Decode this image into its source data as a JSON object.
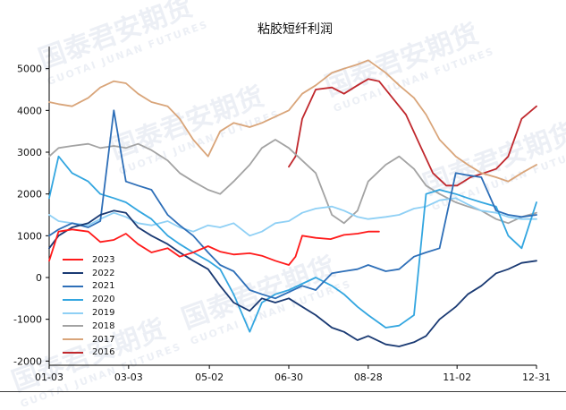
{
  "watermark": {
    "brand": "国泰君安期货",
    "brand_en": "GUOTAI JUNAN FUTURES"
  },
  "chart_data": {
    "type": "line",
    "title": "粘胶短纤利润",
    "xlabel": "",
    "ylabel": "",
    "x_ticks": [
      "01-03",
      "03-03",
      "05-02",
      "06-30",
      "08-28",
      "11-02",
      "12-31"
    ],
    "y_ticks": [
      -2000,
      -1000,
      0,
      1000,
      2000,
      3000,
      4000,
      5000
    ],
    "ylim": [
      -2100,
      5400
    ],
    "grid": false,
    "legend_position": "left-bottom",
    "series": [
      {
        "name": "2023",
        "color": "#ff1a1a",
        "x": [
          "01-03",
          "01-10",
          "01-20",
          "02-01",
          "02-10",
          "02-20",
          "03-01",
          "03-10",
          "03-20",
          "04-01",
          "04-10",
          "04-20",
          "05-01",
          "05-10",
          "05-20",
          "06-01",
          "06-10",
          "06-20",
          "06-30",
          "07-05",
          "07-10",
          "07-20",
          "07-31",
          "08-10",
          "08-20",
          "08-28",
          "09-05"
        ],
        "values": [
          400,
          1100,
          1150,
          1100,
          850,
          900,
          1050,
          800,
          600,
          700,
          500,
          600,
          750,
          620,
          550,
          580,
          520,
          400,
          300,
          500,
          1000,
          950,
          920,
          1020,
          1050,
          1100,
          1100
        ]
      },
      {
        "name": "2022",
        "color": "#1a3a73",
        "x": [
          "01-03",
          "01-10",
          "01-20",
          "02-01",
          "02-10",
          "02-20",
          "03-01",
          "03-10",
          "03-20",
          "04-01",
          "04-10",
          "04-20",
          "05-01",
          "05-10",
          "05-20",
          "06-01",
          "06-10",
          "06-20",
          "06-30",
          "07-10",
          "07-20",
          "08-01",
          "08-10",
          "08-20",
          "08-28",
          "09-10",
          "09-20",
          "10-01",
          "10-10",
          "10-20",
          "11-01",
          "11-10",
          "11-20",
          "12-01",
          "12-10",
          "12-20",
          "12-31"
        ],
        "values": [
          700,
          1000,
          1200,
          1300,
          1500,
          1600,
          1550,
          1200,
          1000,
          800,
          600,
          400,
          200,
          -200,
          -600,
          -800,
          -500,
          -600,
          -500,
          -700,
          -900,
          -1200,
          -1300,
          -1500,
          -1400,
          -1600,
          -1650,
          -1550,
          -1400,
          -1000,
          -700,
          -400,
          -200,
          100,
          200,
          350,
          400
        ]
      },
      {
        "name": "2021",
        "color": "#2e6fb8",
        "x": [
          "01-03",
          "01-10",
          "01-20",
          "02-01",
          "02-10",
          "02-20",
          "03-01",
          "03-10",
          "03-20",
          "04-01",
          "04-10",
          "04-20",
          "05-01",
          "05-10",
          "05-20",
          "06-01",
          "06-10",
          "06-20",
          "06-30",
          "07-10",
          "07-20",
          "08-01",
          "08-10",
          "08-20",
          "08-28",
          "09-10",
          "09-20",
          "10-01",
          "10-10",
          "10-20",
          "11-01",
          "11-10",
          "11-20",
          "12-01",
          "12-10",
          "12-20",
          "12-31"
        ],
        "values": [
          1000,
          1150,
          1300,
          1200,
          1350,
          4000,
          2300,
          2200,
          2100,
          1500,
          1250,
          1000,
          600,
          300,
          150,
          -300,
          -400,
          -500,
          -350,
          -200,
          -300,
          100,
          150,
          200,
          300,
          150,
          200,
          500,
          600,
          700,
          2500,
          2450,
          2400,
          1600,
          1500,
          1450,
          1500
        ]
      },
      {
        "name": "2020",
        "color": "#33a6e0",
        "x": [
          "01-03",
          "01-10",
          "01-20",
          "02-01",
          "02-10",
          "02-20",
          "03-01",
          "03-10",
          "03-20",
          "04-01",
          "04-10",
          "04-20",
          "05-01",
          "05-10",
          "05-20",
          "06-01",
          "06-10",
          "06-20",
          "06-30",
          "07-10",
          "07-20",
          "08-01",
          "08-10",
          "08-20",
          "08-28",
          "09-10",
          "09-20",
          "10-01",
          "10-10",
          "10-20",
          "11-01",
          "11-10",
          "11-20",
          "12-01",
          "12-10",
          "12-20",
          "12-31"
        ],
        "values": [
          1900,
          2900,
          2500,
          2300,
          2000,
          1900,
          1800,
          1600,
          1400,
          1000,
          800,
          600,
          400,
          200,
          -400,
          -1300,
          -600,
          -400,
          -300,
          -150,
          0,
          -200,
          -400,
          -700,
          -900,
          -1200,
          -1150,
          -900,
          2000,
          2100,
          2000,
          1900,
          1800,
          1700,
          1000,
          700,
          1800
        ]
      },
      {
        "name": "2019",
        "color": "#8fd0f5",
        "x": [
          "01-03",
          "01-10",
          "01-20",
          "02-01",
          "02-10",
          "02-20",
          "03-01",
          "03-10",
          "03-20",
          "04-01",
          "04-10",
          "04-20",
          "05-01",
          "05-10",
          "05-20",
          "06-01",
          "06-10",
          "06-20",
          "06-30",
          "07-10",
          "07-20",
          "08-01",
          "08-10",
          "08-20",
          "08-28",
          "09-10",
          "09-20",
          "10-01",
          "10-10",
          "10-20",
          "11-01",
          "11-10",
          "11-20",
          "12-01",
          "12-10",
          "12-20",
          "12-31"
        ],
        "values": [
          1500,
          1350,
          1300,
          1250,
          1400,
          1550,
          1450,
          1300,
          1250,
          1350,
          1200,
          1100,
          1250,
          1200,
          1300,
          1000,
          1100,
          1300,
          1350,
          1550,
          1650,
          1700,
          1600,
          1450,
          1400,
          1450,
          1500,
          1650,
          1700,
          1850,
          1900,
          1750,
          1600,
          1550,
          1450,
          1400,
          1400
        ]
      },
      {
        "name": "2018",
        "color": "#a3a3a3",
        "x": [
          "01-03",
          "01-10",
          "01-20",
          "02-01",
          "02-10",
          "02-20",
          "03-01",
          "03-10",
          "03-20",
          "04-01",
          "04-10",
          "04-20",
          "05-01",
          "05-10",
          "05-20",
          "06-01",
          "06-10",
          "06-20",
          "06-30",
          "07-10",
          "07-20",
          "08-01",
          "08-10",
          "08-20",
          "08-28",
          "09-10",
          "09-20",
          "10-01",
          "10-10",
          "10-20",
          "11-01",
          "11-10",
          "11-20",
          "12-01",
          "12-10",
          "12-20",
          "12-31"
        ],
        "values": [
          2900,
          3100,
          3150,
          3200,
          3100,
          3150,
          3100,
          3200,
          3050,
          2800,
          2500,
          2300,
          2100,
          2000,
          2300,
          2700,
          3100,
          3300,
          3100,
          2800,
          2500,
          1500,
          1300,
          1600,
          2300,
          2700,
          2900,
          2600,
          2200,
          2000,
          1800,
          1700,
          1600,
          1400,
          1300,
          1450,
          1550
        ]
      },
      {
        "name": "2017",
        "color": "#d9a57a",
        "x": [
          "01-03",
          "01-10",
          "01-20",
          "02-01",
          "02-10",
          "02-20",
          "03-01",
          "03-10",
          "03-20",
          "04-01",
          "04-10",
          "04-20",
          "05-01",
          "05-10",
          "05-20",
          "06-01",
          "06-10",
          "06-20",
          "06-30",
          "07-10",
          "07-20",
          "08-01",
          "08-10",
          "08-20",
          "08-28",
          "09-10",
          "09-20",
          "10-01",
          "10-10",
          "10-20",
          "11-01",
          "11-10",
          "11-20",
          "12-01",
          "12-10",
          "12-20",
          "12-31"
        ],
        "values": [
          4200,
          4150,
          4100,
          4300,
          4550,
          4700,
          4650,
          4400,
          4200,
          4100,
          3800,
          3300,
          2900,
          3500,
          3700,
          3600,
          3700,
          3850,
          4000,
          4400,
          4600,
          4900,
          5000,
          5100,
          5200,
          4900,
          4600,
          4300,
          3900,
          3300,
          2900,
          2700,
          2500,
          2400,
          2300,
          2500,
          2700
        ]
      },
      {
        "name": "2016",
        "color": "#c0282d",
        "x": [
          "06-30",
          "07-05",
          "07-10",
          "07-20",
          "08-01",
          "08-10",
          "08-20",
          "08-28",
          "09-05",
          "09-15",
          "09-25",
          "10-05",
          "10-15",
          "10-25",
          "11-02",
          "11-12",
          "11-22",
          "12-01",
          "12-10",
          "12-20",
          "12-31"
        ],
        "values": [
          2650,
          2900,
          3800,
          4500,
          4550,
          4400,
          4600,
          4750,
          4700,
          4300,
          3900,
          3200,
          2500,
          2200,
          2200,
          2400,
          2500,
          2600,
          2900,
          3800,
          4100
        ]
      }
    ]
  }
}
